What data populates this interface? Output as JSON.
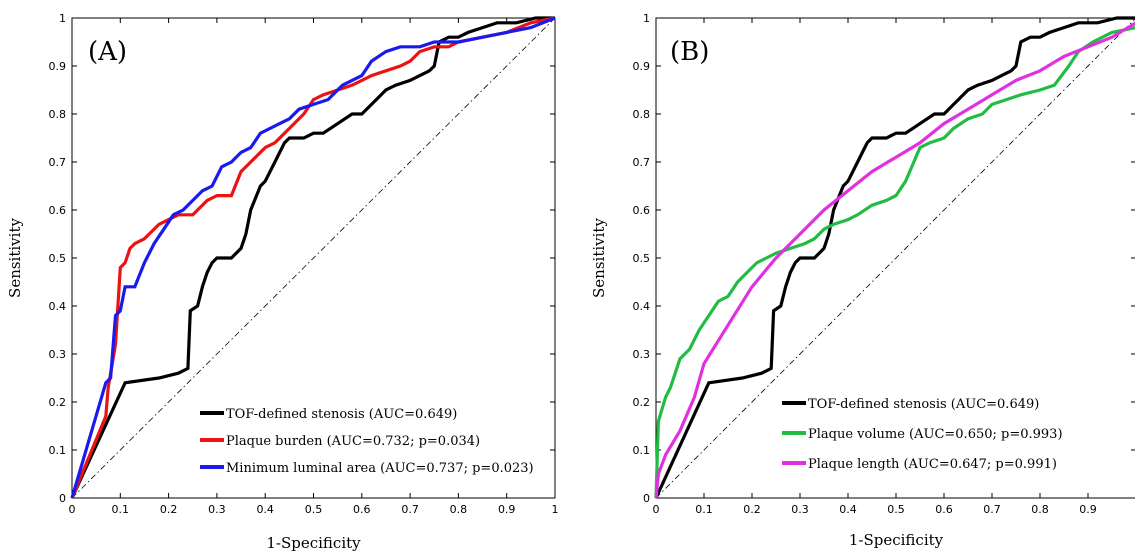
{
  "chart_data": [
    {
      "type": "line",
      "panel_label": "(A)",
      "xlabel": "1-Specificity",
      "ylabel": "Sensitivity",
      "xlim": [
        0,
        1
      ],
      "ylim": [
        0,
        1
      ],
      "x_ticks": [
        "0",
        "0.1",
        "0.2",
        "0.3",
        "0.4",
        "0.5",
        "0.6",
        "0.7",
        "0.8",
        "0.9",
        "1"
      ],
      "y_ticks": [
        "0",
        "0.1",
        "0.2",
        "0.3",
        "0.4",
        "0.5",
        "0.6",
        "0.7",
        "0.8",
        "0.9",
        "1"
      ],
      "grid": false,
      "legend_position": "bottom-right",
      "reference_line": {
        "style": "dash-dot",
        "color": "#000000",
        "x": [
          0,
          1
        ],
        "y": [
          0,
          1
        ]
      },
      "series": [
        {
          "name": "TOF-defined stenosis (AUC=0.649)",
          "color": "#000000",
          "x": [
            0,
            0.11,
            0.18,
            0.22,
            0.24,
            0.245,
            0.26,
            0.27,
            0.28,
            0.29,
            0.3,
            0.33,
            0.35,
            0.36,
            0.37,
            0.39,
            0.4,
            0.42,
            0.43,
            0.44,
            0.45,
            0.48,
            0.5,
            0.52,
            0.55,
            0.58,
            0.6,
            0.62,
            0.63,
            0.65,
            0.67,
            0.7,
            0.72,
            0.74,
            0.75,
            0.76,
            0.78,
            0.8,
            0.82,
            0.85,
            0.88,
            0.92,
            0.96,
            1
          ],
          "y": [
            0,
            0.24,
            0.25,
            0.26,
            0.27,
            0.39,
            0.4,
            0.44,
            0.47,
            0.49,
            0.5,
            0.5,
            0.52,
            0.55,
            0.6,
            0.65,
            0.66,
            0.7,
            0.72,
            0.74,
            0.75,
            0.75,
            0.76,
            0.76,
            0.78,
            0.8,
            0.8,
            0.82,
            0.83,
            0.85,
            0.86,
            0.87,
            0.88,
            0.89,
            0.9,
            0.95,
            0.96,
            0.96,
            0.97,
            0.98,
            0.99,
            0.99,
            1,
            1
          ]
        },
        {
          "name": "Plaque burden (AUC=0.732; p=0.034)",
          "color": "#ee1111",
          "x": [
            0,
            0.07,
            0.075,
            0.09,
            0.1,
            0.11,
            0.12,
            0.13,
            0.15,
            0.18,
            0.2,
            0.22,
            0.25,
            0.28,
            0.3,
            0.33,
            0.35,
            0.37,
            0.4,
            0.42,
            0.45,
            0.48,
            0.5,
            0.52,
            0.55,
            0.58,
            0.6,
            0.62,
            0.65,
            0.68,
            0.7,
            0.72,
            0.75,
            0.78,
            0.8,
            0.85,
            0.9,
            0.95,
            1
          ],
          "y": [
            0,
            0.17,
            0.23,
            0.32,
            0.48,
            0.49,
            0.52,
            0.53,
            0.54,
            0.57,
            0.58,
            0.59,
            0.59,
            0.62,
            0.63,
            0.63,
            0.68,
            0.7,
            0.73,
            0.74,
            0.77,
            0.8,
            0.83,
            0.84,
            0.85,
            0.86,
            0.87,
            0.88,
            0.89,
            0.9,
            0.91,
            0.93,
            0.94,
            0.94,
            0.95,
            0.96,
            0.97,
            0.99,
            1
          ]
        },
        {
          "name": "Minimum luminal area (AUC=0.737; p=0.023)",
          "color": "#1a1aee",
          "x": [
            0,
            0.07,
            0.08,
            0.09,
            0.1,
            0.11,
            0.13,
            0.15,
            0.17,
            0.19,
            0.21,
            0.23,
            0.25,
            0.27,
            0.29,
            0.31,
            0.33,
            0.35,
            0.37,
            0.39,
            0.41,
            0.43,
            0.45,
            0.47,
            0.5,
            0.53,
            0.56,
            0.6,
            0.62,
            0.65,
            0.68,
            0.72,
            0.75,
            0.8,
            0.85,
            0.9,
            0.95,
            1
          ],
          "y": [
            0,
            0.24,
            0.25,
            0.38,
            0.39,
            0.44,
            0.44,
            0.49,
            0.53,
            0.56,
            0.59,
            0.6,
            0.62,
            0.64,
            0.65,
            0.69,
            0.7,
            0.72,
            0.73,
            0.76,
            0.77,
            0.78,
            0.79,
            0.81,
            0.82,
            0.83,
            0.86,
            0.88,
            0.91,
            0.93,
            0.94,
            0.94,
            0.95,
            0.95,
            0.96,
            0.97,
            0.98,
            1
          ]
        }
      ]
    },
    {
      "type": "line",
      "panel_label": "(B)",
      "xlabel": "1-Specificity",
      "ylabel": "Sensitivity",
      "xlim": [
        0,
        1
      ],
      "ylim": [
        0,
        1
      ],
      "x_ticks": [
        "0",
        "0.1",
        "0.2",
        "0.3",
        "0.4",
        "0.5",
        "0.6",
        "0.7",
        "0.8",
        "0.9"
      ],
      "y_ticks": [
        "0",
        "0.1",
        "0.2",
        "0.3",
        "0.4",
        "0.5",
        "0.6",
        "0.7",
        "0.8",
        "0.9",
        "1"
      ],
      "grid": false,
      "legend_position": "bottom-right",
      "reference_line": {
        "style": "dash-dot",
        "color": "#000000",
        "x": [
          0,
          1
        ],
        "y": [
          0,
          1
        ]
      },
      "series": [
        {
          "name": "TOF-defined stenosis (AUC=0.649)",
          "color": "#000000",
          "x": [
            0,
            0.11,
            0.18,
            0.22,
            0.24,
            0.245,
            0.26,
            0.27,
            0.28,
            0.29,
            0.3,
            0.33,
            0.35,
            0.36,
            0.37,
            0.39,
            0.4,
            0.42,
            0.43,
            0.44,
            0.45,
            0.48,
            0.5,
            0.52,
            0.55,
            0.58,
            0.6,
            0.62,
            0.63,
            0.65,
            0.67,
            0.7,
            0.72,
            0.74,
            0.75,
            0.76,
            0.78,
            0.8,
            0.82,
            0.85,
            0.88,
            0.92,
            0.96,
            1
          ],
          "y": [
            0,
            0.24,
            0.25,
            0.26,
            0.27,
            0.39,
            0.4,
            0.44,
            0.47,
            0.49,
            0.5,
            0.5,
            0.52,
            0.55,
            0.6,
            0.65,
            0.66,
            0.7,
            0.72,
            0.74,
            0.75,
            0.75,
            0.76,
            0.76,
            0.78,
            0.8,
            0.8,
            0.82,
            0.83,
            0.85,
            0.86,
            0.87,
            0.88,
            0.89,
            0.9,
            0.95,
            0.96,
            0.96,
            0.97,
            0.98,
            0.99,
            0.99,
            1,
            1
          ]
        },
        {
          "name": "Plaque volume (AUC=0.650; p=0.993)",
          "color": "#22bb44",
          "x": [
            0,
            0.005,
            0.02,
            0.03,
            0.05,
            0.07,
            0.09,
            0.11,
            0.13,
            0.15,
            0.17,
            0.19,
            0.21,
            0.23,
            0.25,
            0.28,
            0.31,
            0.33,
            0.35,
            0.37,
            0.4,
            0.42,
            0.45,
            0.48,
            0.5,
            0.52,
            0.55,
            0.57,
            0.6,
            0.62,
            0.65,
            0.68,
            0.7,
            0.73,
            0.76,
            0.8,
            0.83,
            0.86,
            0.88,
            0.91,
            0.95,
            1
          ],
          "y": [
            0,
            0.16,
            0.21,
            0.23,
            0.29,
            0.31,
            0.35,
            0.38,
            0.41,
            0.42,
            0.45,
            0.47,
            0.49,
            0.5,
            0.51,
            0.52,
            0.53,
            0.54,
            0.56,
            0.57,
            0.58,
            0.59,
            0.61,
            0.62,
            0.63,
            0.66,
            0.73,
            0.74,
            0.75,
            0.77,
            0.79,
            0.8,
            0.82,
            0.83,
            0.84,
            0.85,
            0.86,
            0.9,
            0.93,
            0.95,
            0.97,
            0.98
          ]
        },
        {
          "name": "Plaque length (AUC=0.647; p=0.991)",
          "color": "#e030e0",
          "x": [
            0,
            0.005,
            0.02,
            0.05,
            0.08,
            0.1,
            0.15,
            0.2,
            0.25,
            0.3,
            0.35,
            0.4,
            0.45,
            0.5,
            0.55,
            0.6,
            0.65,
            0.7,
            0.75,
            0.8,
            0.85,
            0.9,
            0.95,
            1
          ],
          "y": [
            0,
            0.05,
            0.09,
            0.14,
            0.21,
            0.28,
            0.36,
            0.44,
            0.5,
            0.55,
            0.6,
            0.64,
            0.68,
            0.71,
            0.74,
            0.78,
            0.81,
            0.84,
            0.87,
            0.89,
            0.92,
            0.94,
            0.96,
            0.99
          ]
        }
      ]
    }
  ]
}
